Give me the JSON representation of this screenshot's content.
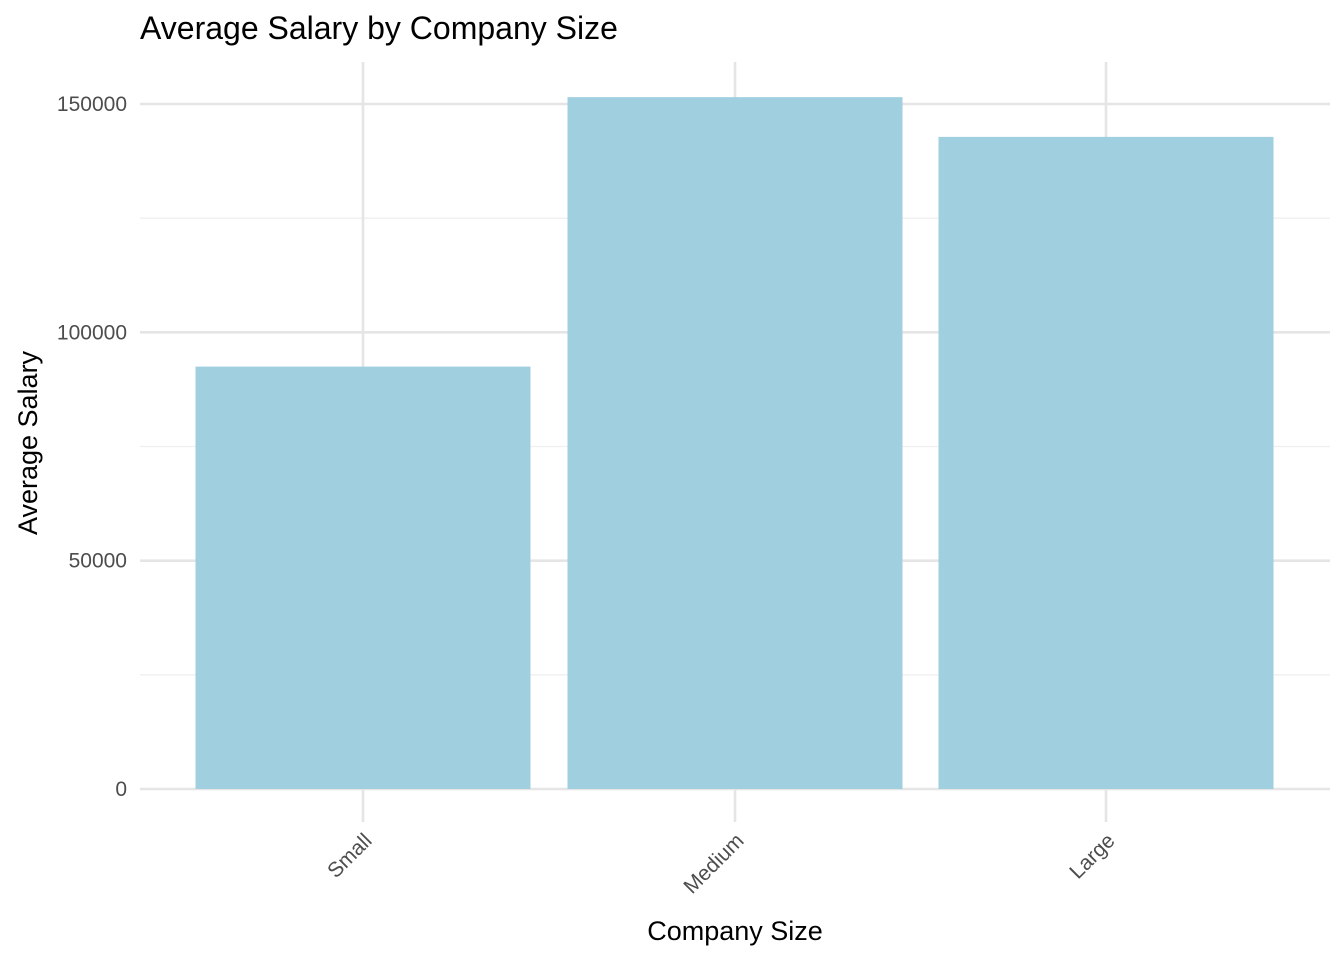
{
  "chart_data": {
    "type": "bar",
    "title": "Average Salary by Company Size",
    "xlabel": "Company Size",
    "ylabel": "Average Salary",
    "categories": [
      "Small",
      "Medium",
      "Large"
    ],
    "values": [
      92500,
      151500,
      142800
    ],
    "ylim": [
      0,
      160000
    ],
    "y_major_ticks": [
      0,
      50000,
      100000,
      150000
    ],
    "y_minor_ticks": [
      25000,
      75000,
      125000
    ],
    "y_tick_labels": [
      "0",
      "50000",
      "100000",
      "150000"
    ],
    "grid": true,
    "legend": "none",
    "x_tick_label_rotation": "45deg",
    "colors": {
      "bar_fill": "#a0cfe0",
      "grid_major": "#e5e5e5",
      "grid_minor": "#efefef",
      "tick_text": "#4d4d4d",
      "text": "#000000",
      "background": "#ffffff"
    }
  }
}
